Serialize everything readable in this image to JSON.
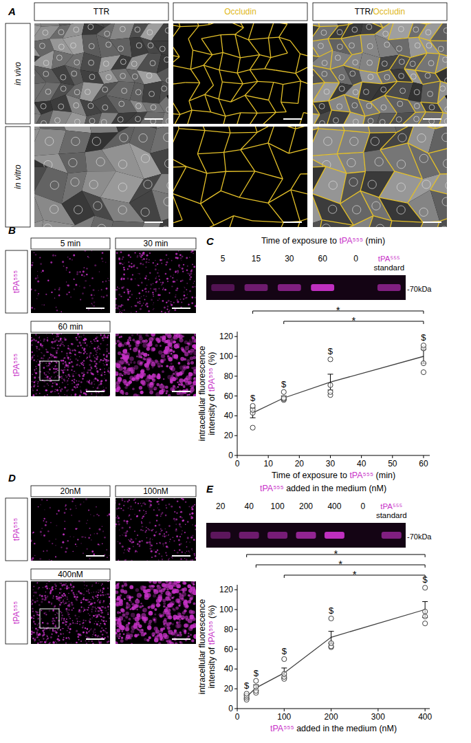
{
  "figure": {
    "panel_a": {
      "letter": "A",
      "columns": [
        [
          {
            "text": "TTR"
          }
        ],
        [
          {
            "text": "Occludin",
            "color": "#e0b820"
          }
        ],
        [
          {
            "text": "TTR/"
          },
          {
            "text": "Occludin",
            "color": "#e0b820"
          }
        ]
      ],
      "rows": [
        "in vivo",
        "in vitro"
      ]
    },
    "panel_b": {
      "letter": "B",
      "row_label": [
        {
          "text": "tPA⁵⁵⁵",
          "color": "#c832c8"
        }
      ],
      "images": [
        "5 min",
        "30 min",
        "60 min"
      ]
    },
    "panel_d": {
      "letter": "D",
      "row_label": [
        {
          "text": "tPA⁵⁵⁵",
          "color": "#c832c8"
        }
      ],
      "images": [
        "20nM",
        "100nM",
        "400nM"
      ]
    },
    "gel_c": {
      "letter": "C",
      "title": [
        {
          "text": "Time of exposure to "
        },
        {
          "text": "tPA⁵⁵⁵",
          "color": "#c832c8"
        },
        {
          "text": " (min)"
        }
      ],
      "lanes": [
        "5",
        "15",
        "30",
        "60",
        "0"
      ],
      "standard": [
        {
          "text": "tPA⁵⁵⁵",
          "color": "#c832c8"
        },
        {
          "text": "standard"
        }
      ],
      "band_intensity": [
        0.35,
        0.5,
        0.6,
        0.95,
        0,
        0.6
      ],
      "size_label": "-70kDa"
    },
    "gel_e": {
      "letter": "E",
      "title": [
        {
          "text": "tPA⁵⁵⁵",
          "color": "#c832c8"
        },
        {
          "text": " added in the medium (nM)"
        }
      ],
      "lanes": [
        "20",
        "40",
        "100",
        "200",
        "400",
        "0"
      ],
      "standard": [
        {
          "text": "tPA⁵⁵⁵",
          "color": "#c832c8"
        },
        {
          "text": "standard"
        }
      ],
      "band_intensity": [
        0.4,
        0.5,
        0.55,
        0.7,
        0.95,
        0,
        0.6
      ],
      "size_label": "-70kDa"
    }
  },
  "chart_data": [
    {
      "type": "line",
      "x": [
        5,
        15,
        30,
        60
      ],
      "values": [
        43,
        58,
        74,
        100
      ],
      "errors": [
        5,
        2,
        8,
        7
      ],
      "points": [
        [
          28,
          43,
          46,
          50
        ],
        [
          56,
          57,
          58,
          64
        ],
        [
          61,
          64,
          71,
          97
        ],
        [
          84,
          93,
          108,
          111
        ]
      ],
      "annotations": [
        "$",
        "$",
        "$",
        "$"
      ],
      "significance": [
        {
          "from": 0,
          "to": 3,
          "label": "*"
        },
        {
          "from": 1,
          "to": 3,
          "label": "*"
        }
      ],
      "xlim": [
        0,
        62
      ],
      "ylim": [
        0,
        125
      ],
      "xticks": [
        0,
        10,
        20,
        30,
        40,
        50,
        60
      ],
      "yticks": [
        0,
        20,
        40,
        60,
        80,
        100,
        120
      ],
      "x_label": [
        {
          "text": "Time of exposure to "
        },
        {
          "text": "tPA⁵⁵⁵",
          "color": "#c832c8"
        },
        {
          "text": " (min)"
        }
      ],
      "y_label": [
        [
          {
            "text": "intracellular fluorescence"
          }
        ],
        [
          {
            "text": "intensity of "
          },
          {
            "text": "tPA⁵⁵⁵",
            "color": "#c832c8"
          },
          {
            "text": " (%)"
          }
        ]
      ],
      "color": "#404040",
      "marker": "circle",
      "line_style": "solid"
    },
    {
      "type": "line",
      "x": [
        20,
        40,
        100,
        200,
        400
      ],
      "values": [
        12,
        21,
        36,
        72,
        100
      ],
      "errors": [
        2,
        3,
        5,
        6,
        8
      ],
      "points": [
        [
          9,
          11,
          13,
          15
        ],
        [
          16,
          18,
          22,
          28
        ],
        [
          30,
          32,
          35,
          50
        ],
        [
          62,
          63,
          66,
          91
        ],
        [
          86,
          93,
          98,
          122
        ]
      ],
      "annotations": [
        "$",
        "$",
        "$",
        "$",
        "$"
      ],
      "significance": [
        {
          "from": 0,
          "to": 4,
          "label": "*"
        },
        {
          "from": 1,
          "to": 4,
          "label": "*"
        },
        {
          "from": 2,
          "to": 4,
          "label": "*"
        }
      ],
      "xlim": [
        0,
        410
      ],
      "ylim": [
        0,
        125
      ],
      "xticks": [
        0,
        100,
        200,
        300,
        400
      ],
      "yticks": [
        0,
        20,
        40,
        60,
        80,
        100,
        120
      ],
      "x_label": [
        {
          "text": "tPA⁵⁵⁵",
          "color": "#c832c8"
        },
        {
          "text": " added in the medium (nM)"
        }
      ],
      "y_label": [
        [
          {
            "text": "intracellular fluorescence"
          }
        ],
        [
          {
            "text": "intensity of "
          },
          {
            "text": "tPA⁵⁵⁵",
            "color": "#c832c8"
          },
          {
            "text": " (%)"
          }
        ]
      ],
      "color": "#404040",
      "marker": "circle",
      "line_style": "solid"
    }
  ]
}
